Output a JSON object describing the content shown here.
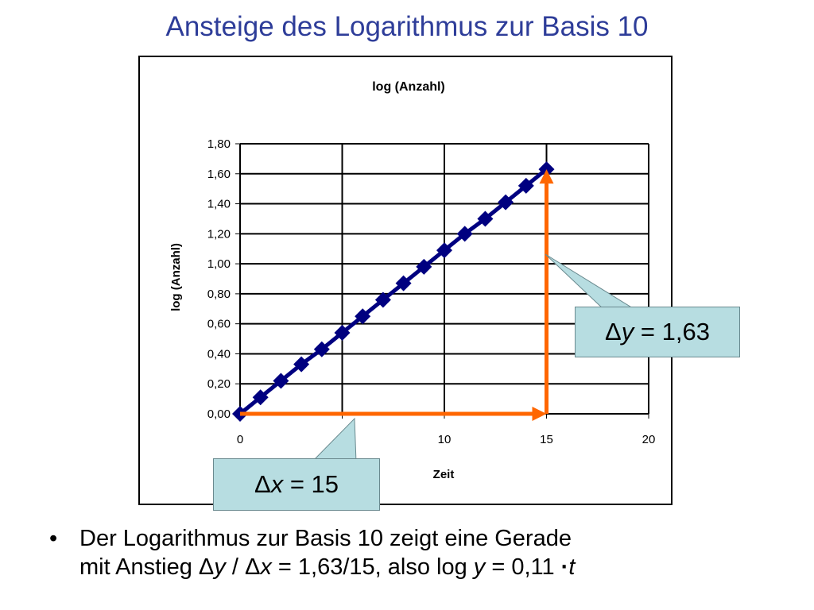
{
  "slide": {
    "title": "Ansteige des Logarithmus zur Basis 10",
    "bullet": {
      "marker": "•",
      "line1": "Der Logarithmus zur Basis 10 zeigt eine Gerade",
      "line2_prefix": "mit Anstieg Δ",
      "var_y": "y",
      "slash_delta": " / Δ",
      "var_x": "x",
      "middle": " = 1,63/15, also log ",
      "var_y2": "y",
      "eq": " = 0,11 ",
      "dot_op": "·",
      "var_t": "t"
    }
  },
  "callouts": {
    "dy": {
      "delta": "Δ",
      "var": "y",
      "value": " = 1,63"
    },
    "dx": {
      "delta": "Δ",
      "var": "x",
      "value": " = 15"
    }
  },
  "colors": {
    "series": "#000080",
    "arrow": "#ff6600",
    "callout_fill": "#b7dde1",
    "title": "#2e3d99"
  },
  "chart_data": {
    "type": "scatter",
    "title": "log (Anzahl)",
    "xlabel": "Zeit",
    "ylabel": "log (Anzahl)",
    "xlim": [
      0,
      20
    ],
    "ylim": [
      0,
      1.8
    ],
    "xticks": [
      0,
      10,
      15,
      20
    ],
    "xtick_labels": [
      "0",
      "10",
      "15",
      "20"
    ],
    "xgrid": [
      0,
      5,
      10,
      15,
      20
    ],
    "yticks": [
      0,
      0.2,
      0.4,
      0.6,
      0.8,
      1.0,
      1.2,
      1.4,
      1.6,
      1.8
    ],
    "ytick_labels": [
      "0,00",
      "0,20",
      "0,40",
      "0,60",
      "0,80",
      "1,00",
      "1,20",
      "1,40",
      "1,60",
      "1,80"
    ],
    "grid": true,
    "series": [
      {
        "marker": "diamond",
        "x": [
          0,
          1,
          2,
          3,
          4,
          5,
          6,
          7,
          8,
          9,
          10,
          11,
          12,
          13,
          14,
          15
        ],
        "y": [
          0.0,
          0.11,
          0.22,
          0.33,
          0.43,
          0.54,
          0.65,
          0.76,
          0.87,
          0.98,
          1.09,
          1.2,
          1.3,
          1.41,
          1.52,
          1.63
        ]
      }
    ],
    "arrows": [
      {
        "from": [
          0,
          0
        ],
        "to": [
          15,
          0
        ]
      },
      {
        "from": [
          15,
          0
        ],
        "to": [
          15,
          1.63
        ]
      }
    ]
  }
}
